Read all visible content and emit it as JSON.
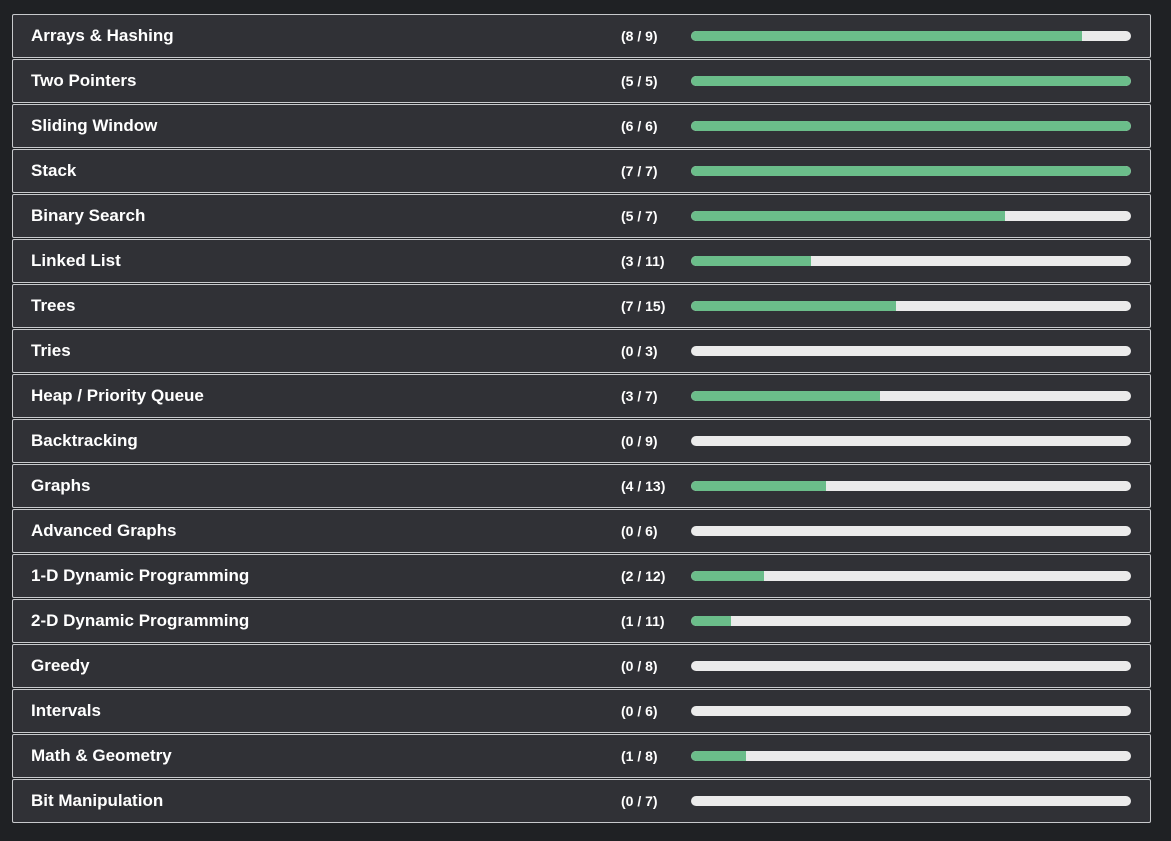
{
  "colors": {
    "background": "#1f2124",
    "row_background": "#303136",
    "row_border": "#c7c9cc",
    "progress_fill": "#6bbd8a",
    "progress_track": "#ebebeb",
    "text": "#ffffff"
  },
  "topics": [
    {
      "name": "Arrays & Hashing",
      "count": "(8 / 9)",
      "solved": 8,
      "total": 9
    },
    {
      "name": "Two Pointers",
      "count": "(5 / 5)",
      "solved": 5,
      "total": 5
    },
    {
      "name": "Sliding Window",
      "count": "(6 / 6)",
      "solved": 6,
      "total": 6
    },
    {
      "name": "Stack",
      "count": "(7 / 7)",
      "solved": 7,
      "total": 7
    },
    {
      "name": "Binary Search",
      "count": "(5 / 7)",
      "solved": 5,
      "total": 7
    },
    {
      "name": "Linked List",
      "count": "(3 / 11)",
      "solved": 3,
      "total": 11
    },
    {
      "name": "Trees",
      "count": "(7 / 15)",
      "solved": 7,
      "total": 15
    },
    {
      "name": "Tries",
      "count": "(0 / 3)",
      "solved": 0,
      "total": 3
    },
    {
      "name": "Heap / Priority Queue",
      "count": "(3 / 7)",
      "solved": 3,
      "total": 7
    },
    {
      "name": "Backtracking",
      "count": "(0 / 9)",
      "solved": 0,
      "total": 9
    },
    {
      "name": "Graphs",
      "count": "(4 / 13)",
      "solved": 4,
      "total": 13
    },
    {
      "name": "Advanced Graphs",
      "count": "(0 / 6)",
      "solved": 0,
      "total": 6
    },
    {
      "name": "1-D Dynamic Programming",
      "count": "(2 / 12)",
      "solved": 2,
      "total": 12
    },
    {
      "name": "2-D Dynamic Programming",
      "count": "(1 / 11)",
      "solved": 1,
      "total": 11
    },
    {
      "name": "Greedy",
      "count": "(0 / 8)",
      "solved": 0,
      "total": 8
    },
    {
      "name": "Intervals",
      "count": "(0 / 6)",
      "solved": 0,
      "total": 6
    },
    {
      "name": "Math & Geometry",
      "count": "(1 / 8)",
      "solved": 1,
      "total": 8
    },
    {
      "name": "Bit Manipulation",
      "count": "(0 / 7)",
      "solved": 0,
      "total": 7
    }
  ]
}
